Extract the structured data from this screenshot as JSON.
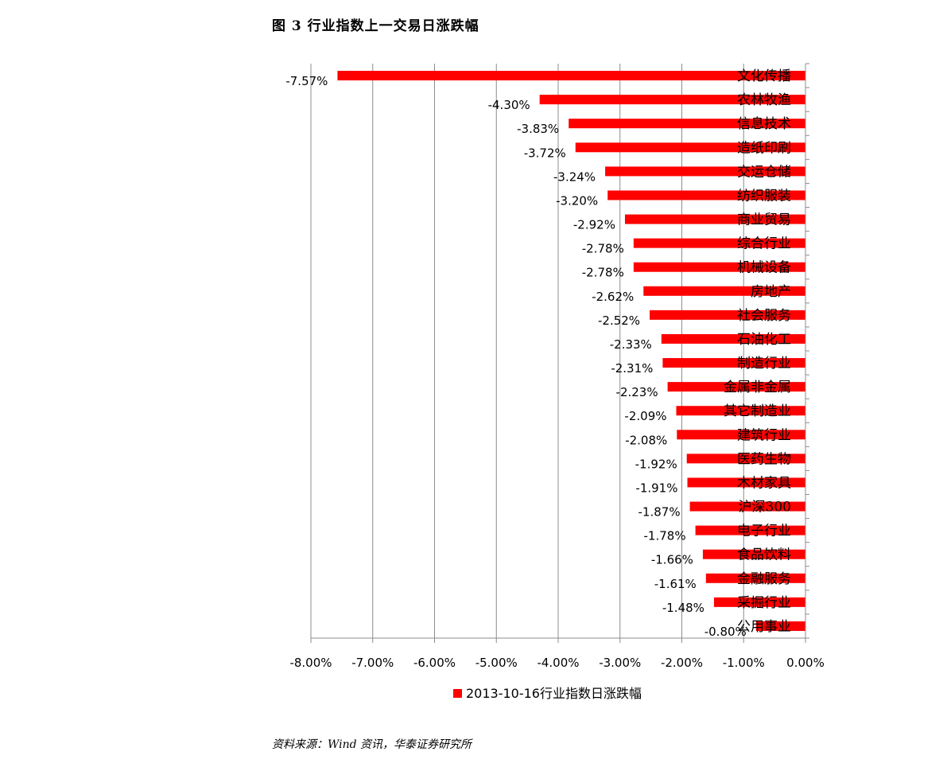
{
  "figure": {
    "title": "图 3   行业指数上一交易日涨跌幅",
    "source": "资料来源：Wind 资讯，华泰证券研究所"
  },
  "colors": {
    "bar": "#ff0000",
    "grid": "#8c8c8c",
    "axis": "#8c8c8c"
  },
  "chart_data": {
    "type": "bar",
    "orientation": "horizontal",
    "xlim": [
      -8.0,
      0.0
    ],
    "xticks": [
      -8,
      -7,
      -6,
      -5,
      -4,
      -3,
      -2,
      -1,
      0
    ],
    "xtick_labels": [
      "-8.00%",
      "-7.00%",
      "-6.00%",
      "-5.00%",
      "-4.00%",
      "-3.00%",
      "-2.00%",
      "-1.00%",
      "0.00%"
    ],
    "grid": "vertical",
    "legend_position": "bottom",
    "series": [
      {
        "name": "2013-10-16行业指数日涨跌幅",
        "color": "#ff0000",
        "categories": [
          "文化传播",
          "农林牧渔",
          "信息技术",
          "造纸印刷",
          "交运仓储",
          "纺织服装",
          "商业贸易",
          "综合行业",
          "机械设备",
          "房地产",
          "社会服务",
          "石油化工",
          "制造行业",
          "金属非金属",
          "其它制造业",
          "建筑行业",
          "医药生物",
          "木材家具",
          "沪深300",
          "电子行业",
          "食品饮料",
          "金融服务",
          "采掘行业",
          "公用事业"
        ],
        "values": [
          -7.57,
          -4.3,
          -3.83,
          -3.72,
          -3.24,
          -3.2,
          -2.92,
          -2.78,
          -2.78,
          -2.62,
          -2.52,
          -2.33,
          -2.31,
          -2.23,
          -2.09,
          -2.08,
          -1.92,
          -1.91,
          -1.87,
          -1.78,
          -1.66,
          -1.61,
          -1.48,
          -0.8
        ],
        "labels": [
          "-7.57%",
          "-4.30%",
          "-3.83%",
          "-3.72%",
          "-3.24%",
          "-3.20%",
          "-2.92%",
          "-2.78%",
          "-2.78%",
          "-2.62%",
          "-2.52%",
          "-2.33%",
          "-2.31%",
          "-2.23%",
          "-2.09%",
          "-2.08%",
          "-1.92%",
          "-1.91%",
          "-1.87%",
          "-1.78%",
          "-1.66%",
          "-1.61%",
          "-1.48%",
          "-0.80%"
        ]
      }
    ]
  }
}
